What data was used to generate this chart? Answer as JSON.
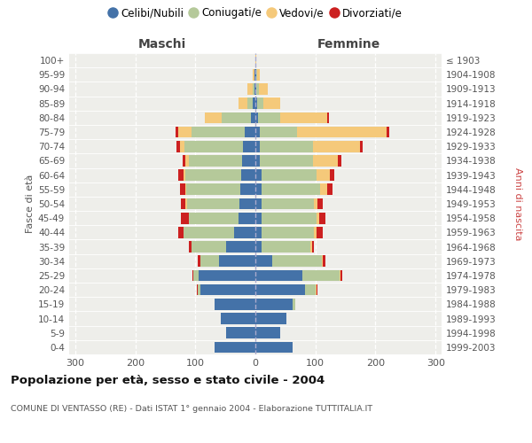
{
  "age_groups": [
    "0-4",
    "5-9",
    "10-14",
    "15-19",
    "20-24",
    "25-29",
    "30-34",
    "35-39",
    "40-44",
    "45-49",
    "50-54",
    "55-59",
    "60-64",
    "65-69",
    "70-74",
    "75-79",
    "80-84",
    "85-89",
    "90-94",
    "95-99",
    "100+"
  ],
  "birth_years": [
    "1999-2003",
    "1994-1998",
    "1989-1993",
    "1984-1988",
    "1979-1983",
    "1974-1978",
    "1969-1973",
    "1964-1968",
    "1959-1963",
    "1954-1958",
    "1949-1953",
    "1944-1948",
    "1939-1943",
    "1934-1938",
    "1929-1933",
    "1924-1928",
    "1919-1923",
    "1914-1918",
    "1909-1913",
    "1904-1908",
    "≤ 1903"
  ],
  "maschi": {
    "celibi": [
      68,
      48,
      58,
      68,
      92,
      95,
      60,
      48,
      35,
      28,
      26,
      25,
      24,
      22,
      20,
      18,
      8,
      4,
      2,
      1,
      0
    ],
    "coniugati": [
      0,
      0,
      0,
      0,
      4,
      8,
      32,
      58,
      85,
      82,
      88,
      90,
      92,
      88,
      98,
      88,
      48,
      10,
      3,
      1,
      0
    ],
    "vedovi": [
      0,
      0,
      0,
      0,
      0,
      0,
      0,
      0,
      0,
      0,
      2,
      2,
      4,
      6,
      8,
      22,
      28,
      14,
      8,
      2,
      0
    ],
    "divorziati": [
      0,
      0,
      0,
      0,
      2,
      2,
      4,
      4,
      8,
      14,
      8,
      8,
      8,
      5,
      5,
      5,
      0,
      0,
      0,
      0,
      0
    ]
  },
  "femmine": {
    "nubili": [
      62,
      42,
      52,
      62,
      82,
      78,
      28,
      10,
      10,
      10,
      10,
      10,
      10,
      8,
      8,
      8,
      4,
      3,
      2,
      1,
      0
    ],
    "coniugate": [
      0,
      0,
      0,
      4,
      18,
      62,
      82,
      82,
      88,
      92,
      88,
      98,
      92,
      88,
      88,
      62,
      38,
      10,
      4,
      2,
      0
    ],
    "vedove": [
      0,
      0,
      0,
      0,
      2,
      2,
      2,
      2,
      4,
      4,
      6,
      12,
      22,
      42,
      78,
      148,
      78,
      28,
      14,
      5,
      1
    ],
    "divorziate": [
      0,
      0,
      0,
      0,
      2,
      2,
      4,
      4,
      10,
      10,
      8,
      8,
      8,
      5,
      5,
      5,
      2,
      0,
      0,
      0,
      0
    ]
  },
  "colors": {
    "celibi_nubili": "#4472a8",
    "coniugati": "#b5c99a",
    "vedovi": "#f5c97a",
    "divorziati": "#cc2020"
  },
  "title": "Popolazione per età, sesso e stato civile - 2004",
  "subtitle": "COMUNE DI VENTASSO (RE) - Dati ISTAT 1° gennaio 2004 - Elaborazione TUTTITALIA.IT",
  "xlabel_left": "Maschi",
  "xlabel_right": "Femmine",
  "ylabel_left": "Fasce di età",
  "ylabel_right": "Anni di nascita",
  "xlim": 310,
  "bg_color": "#eeeeea",
  "legend_labels": [
    "Celibi/Nubili",
    "Coniugati/e",
    "Vedovi/e",
    "Divorziati/e"
  ]
}
